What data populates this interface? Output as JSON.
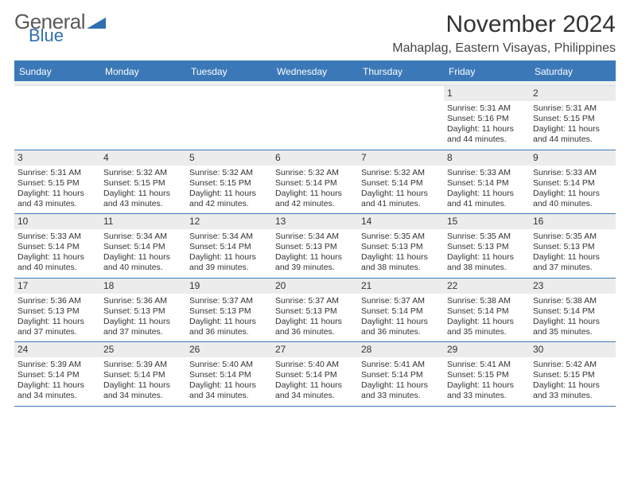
{
  "logo": {
    "text1": "General",
    "text2": "Blue"
  },
  "title": "November 2024",
  "location": "Mahaplag, Eastern Visayas, Philippines",
  "colors": {
    "header_bar": "#3b78b8",
    "header_text": "#ffffff",
    "daynum_bg": "#ececec",
    "border": "#3b78b8",
    "logo_blue": "#2f6fb0",
    "logo_gray": "#5a5a5a"
  },
  "daynames": [
    "Sunday",
    "Monday",
    "Tuesday",
    "Wednesday",
    "Thursday",
    "Friday",
    "Saturday"
  ],
  "weeks": [
    [
      {
        "n": "",
        "sr": "",
        "ss": "",
        "dl": ""
      },
      {
        "n": "",
        "sr": "",
        "ss": "",
        "dl": ""
      },
      {
        "n": "",
        "sr": "",
        "ss": "",
        "dl": ""
      },
      {
        "n": "",
        "sr": "",
        "ss": "",
        "dl": ""
      },
      {
        "n": "",
        "sr": "",
        "ss": "",
        "dl": ""
      },
      {
        "n": "1",
        "sr": "Sunrise: 5:31 AM",
        "ss": "Sunset: 5:16 PM",
        "dl": "Daylight: 11 hours and 44 minutes."
      },
      {
        "n": "2",
        "sr": "Sunrise: 5:31 AM",
        "ss": "Sunset: 5:15 PM",
        "dl": "Daylight: 11 hours and 44 minutes."
      }
    ],
    [
      {
        "n": "3",
        "sr": "Sunrise: 5:31 AM",
        "ss": "Sunset: 5:15 PM",
        "dl": "Daylight: 11 hours and 43 minutes."
      },
      {
        "n": "4",
        "sr": "Sunrise: 5:32 AM",
        "ss": "Sunset: 5:15 PM",
        "dl": "Daylight: 11 hours and 43 minutes."
      },
      {
        "n": "5",
        "sr": "Sunrise: 5:32 AM",
        "ss": "Sunset: 5:15 PM",
        "dl": "Daylight: 11 hours and 42 minutes."
      },
      {
        "n": "6",
        "sr": "Sunrise: 5:32 AM",
        "ss": "Sunset: 5:14 PM",
        "dl": "Daylight: 11 hours and 42 minutes."
      },
      {
        "n": "7",
        "sr": "Sunrise: 5:32 AM",
        "ss": "Sunset: 5:14 PM",
        "dl": "Daylight: 11 hours and 41 minutes."
      },
      {
        "n": "8",
        "sr": "Sunrise: 5:33 AM",
        "ss": "Sunset: 5:14 PM",
        "dl": "Daylight: 11 hours and 41 minutes."
      },
      {
        "n": "9",
        "sr": "Sunrise: 5:33 AM",
        "ss": "Sunset: 5:14 PM",
        "dl": "Daylight: 11 hours and 40 minutes."
      }
    ],
    [
      {
        "n": "10",
        "sr": "Sunrise: 5:33 AM",
        "ss": "Sunset: 5:14 PM",
        "dl": "Daylight: 11 hours and 40 minutes."
      },
      {
        "n": "11",
        "sr": "Sunrise: 5:34 AM",
        "ss": "Sunset: 5:14 PM",
        "dl": "Daylight: 11 hours and 40 minutes."
      },
      {
        "n": "12",
        "sr": "Sunrise: 5:34 AM",
        "ss": "Sunset: 5:14 PM",
        "dl": "Daylight: 11 hours and 39 minutes."
      },
      {
        "n": "13",
        "sr": "Sunrise: 5:34 AM",
        "ss": "Sunset: 5:13 PM",
        "dl": "Daylight: 11 hours and 39 minutes."
      },
      {
        "n": "14",
        "sr": "Sunrise: 5:35 AM",
        "ss": "Sunset: 5:13 PM",
        "dl": "Daylight: 11 hours and 38 minutes."
      },
      {
        "n": "15",
        "sr": "Sunrise: 5:35 AM",
        "ss": "Sunset: 5:13 PM",
        "dl": "Daylight: 11 hours and 38 minutes."
      },
      {
        "n": "16",
        "sr": "Sunrise: 5:35 AM",
        "ss": "Sunset: 5:13 PM",
        "dl": "Daylight: 11 hours and 37 minutes."
      }
    ],
    [
      {
        "n": "17",
        "sr": "Sunrise: 5:36 AM",
        "ss": "Sunset: 5:13 PM",
        "dl": "Daylight: 11 hours and 37 minutes."
      },
      {
        "n": "18",
        "sr": "Sunrise: 5:36 AM",
        "ss": "Sunset: 5:13 PM",
        "dl": "Daylight: 11 hours and 37 minutes."
      },
      {
        "n": "19",
        "sr": "Sunrise: 5:37 AM",
        "ss": "Sunset: 5:13 PM",
        "dl": "Daylight: 11 hours and 36 minutes."
      },
      {
        "n": "20",
        "sr": "Sunrise: 5:37 AM",
        "ss": "Sunset: 5:13 PM",
        "dl": "Daylight: 11 hours and 36 minutes."
      },
      {
        "n": "21",
        "sr": "Sunrise: 5:37 AM",
        "ss": "Sunset: 5:14 PM",
        "dl": "Daylight: 11 hours and 36 minutes."
      },
      {
        "n": "22",
        "sr": "Sunrise: 5:38 AM",
        "ss": "Sunset: 5:14 PM",
        "dl": "Daylight: 11 hours and 35 minutes."
      },
      {
        "n": "23",
        "sr": "Sunrise: 5:38 AM",
        "ss": "Sunset: 5:14 PM",
        "dl": "Daylight: 11 hours and 35 minutes."
      }
    ],
    [
      {
        "n": "24",
        "sr": "Sunrise: 5:39 AM",
        "ss": "Sunset: 5:14 PM",
        "dl": "Daylight: 11 hours and 34 minutes."
      },
      {
        "n": "25",
        "sr": "Sunrise: 5:39 AM",
        "ss": "Sunset: 5:14 PM",
        "dl": "Daylight: 11 hours and 34 minutes."
      },
      {
        "n": "26",
        "sr": "Sunrise: 5:40 AM",
        "ss": "Sunset: 5:14 PM",
        "dl": "Daylight: 11 hours and 34 minutes."
      },
      {
        "n": "27",
        "sr": "Sunrise: 5:40 AM",
        "ss": "Sunset: 5:14 PM",
        "dl": "Daylight: 11 hours and 34 minutes."
      },
      {
        "n": "28",
        "sr": "Sunrise: 5:41 AM",
        "ss": "Sunset: 5:14 PM",
        "dl": "Daylight: 11 hours and 33 minutes."
      },
      {
        "n": "29",
        "sr": "Sunrise: 5:41 AM",
        "ss": "Sunset: 5:15 PM",
        "dl": "Daylight: 11 hours and 33 minutes."
      },
      {
        "n": "30",
        "sr": "Sunrise: 5:42 AM",
        "ss": "Sunset: 5:15 PM",
        "dl": "Daylight: 11 hours and 33 minutes."
      }
    ]
  ]
}
